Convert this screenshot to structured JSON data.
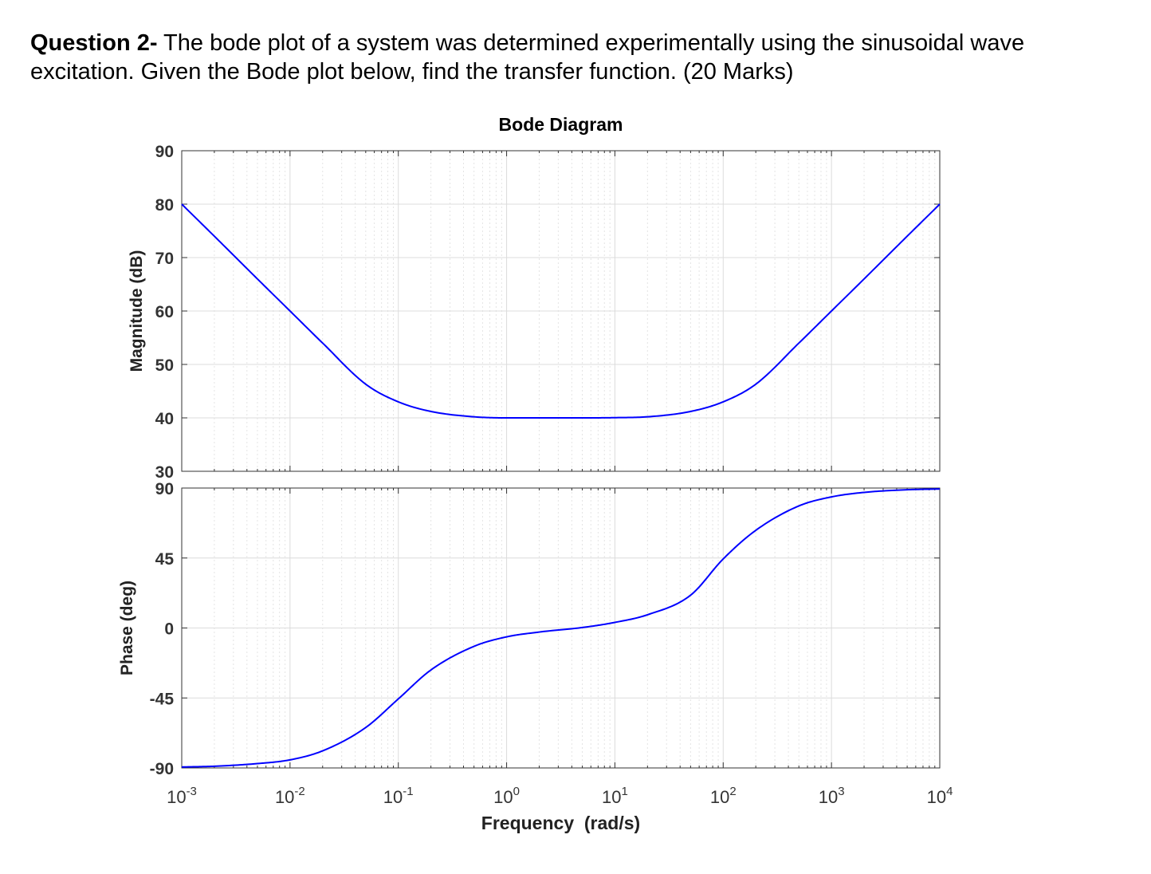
{
  "question": {
    "label": "Question 2-",
    "text": " The bode plot of a system was determined experimentally using the sinusoidal wave excitation. Given the Bode plot below, find the transfer function. (20 Marks)"
  },
  "chart_data": {
    "type": "line",
    "title": "Bode Diagram",
    "xlabel": "Frequency  (rad/s)",
    "xscale": "log",
    "xlim": [
      0.001,
      10000
    ],
    "xticks": [
      {
        "base": "10",
        "exp": "-3"
      },
      {
        "base": "10",
        "exp": "-2"
      },
      {
        "base": "10",
        "exp": "-1"
      },
      {
        "base": "10",
        "exp": "0"
      },
      {
        "base": "10",
        "exp": "1"
      },
      {
        "base": "10",
        "exp": "2"
      },
      {
        "base": "10",
        "exp": "3"
      },
      {
        "base": "10",
        "exp": "4"
      }
    ],
    "grid": true,
    "line_color": "#0000ff",
    "panels": [
      {
        "ylabel": "Magnitude (dB)",
        "ylim": [
          30,
          90
        ],
        "yticks": [
          90,
          80,
          70,
          60,
          50,
          40,
          30
        ],
        "x": [
          0.001,
          0.002,
          0.005,
          0.01,
          0.02,
          0.05,
          0.1,
          0.2,
          0.5,
          1,
          2,
          5,
          10,
          20,
          50,
          100,
          200,
          500,
          1000,
          2000,
          5000,
          10000
        ],
        "y": [
          80,
          74,
          66,
          60,
          54,
          46.3,
          43,
          41.2,
          40.2,
          40,
          40,
          40,
          40.04,
          40.2,
          41.2,
          43,
          46.3,
          54,
          60,
          66,
          74,
          80
        ]
      },
      {
        "ylabel": "Phase (deg)",
        "ylim": [
          -90,
          90
        ],
        "yticks": [
          90,
          45,
          0,
          -45,
          -90
        ],
        "x": [
          0.001,
          0.002,
          0.005,
          0.01,
          0.02,
          0.05,
          0.1,
          0.2,
          0.5,
          1,
          2,
          5,
          10,
          20,
          50,
          100,
          200,
          500,
          1000,
          2000,
          5000,
          10000
        ],
        "y": [
          -89.4,
          -88.9,
          -87.2,
          -84.8,
          -79,
          -64,
          -45.6,
          -27,
          -11.8,
          -5.7,
          -2.6,
          0.3,
          3.6,
          8.5,
          21.1,
          44.4,
          62.8,
          78.5,
          84.3,
          87.2,
          88.9,
          89.4
        ]
      }
    ]
  }
}
